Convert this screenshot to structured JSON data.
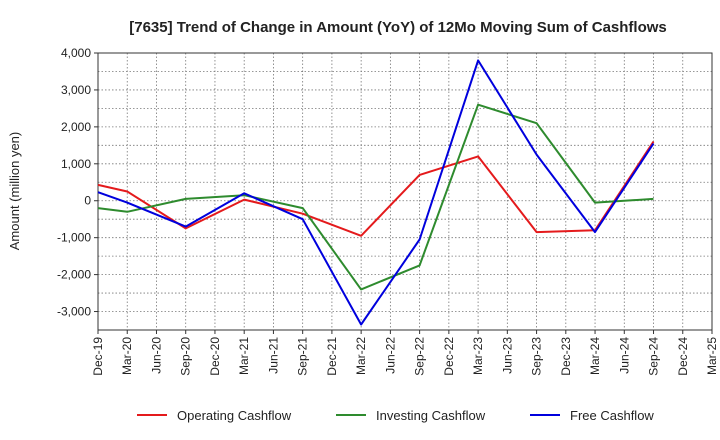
{
  "chart_data": {
    "type": "line",
    "title": "[7635]  Trend of Change in Amount (YoY) of 12Mo Moving Sum of Cashflows",
    "xlabel": "",
    "ylabel": "Amount (million yen)",
    "ylim": [
      -3500,
      4000
    ],
    "yticks": [
      -3000,
      -2000,
      -1000,
      0,
      1000,
      2000,
      3000,
      4000
    ],
    "ytick_labels": [
      "-3,000",
      "-2,000",
      "-1,000",
      "0",
      "1,000",
      "2,000",
      "3,000",
      "4,000"
    ],
    "categories": [
      "Dec-19",
      "Mar-20",
      "Jun-20",
      "Sep-20",
      "Dec-20",
      "Mar-21",
      "Jun-21",
      "Sep-21",
      "Dec-21",
      "Mar-22",
      "Jun-22",
      "Sep-22",
      "Dec-22",
      "Mar-23",
      "Jun-23",
      "Sep-23",
      "Dec-23",
      "Mar-24",
      "Jun-24",
      "Sep-24",
      "Dec-24",
      "Mar-25"
    ],
    "grid": true,
    "legend_position": "bottom",
    "series": [
      {
        "name": "Operating Cashflow",
        "color": "#e41a1c",
        "values": [
          430,
          250,
          null,
          -750,
          null,
          30,
          null,
          -350,
          null,
          -950,
          null,
          700,
          null,
          1200,
          null,
          -850,
          null,
          -800,
          null,
          1600,
          null,
          null
        ]
      },
      {
        "name": "Investing Cashflow",
        "color": "#2e8b2e",
        "values": [
          -200,
          -300,
          null,
          50,
          null,
          150,
          null,
          -200,
          null,
          -2400,
          null,
          -1750,
          null,
          2600,
          null,
          2100,
          null,
          -50,
          null,
          50,
          null,
          null
        ]
      },
      {
        "name": "Free Cashflow",
        "color": "#0000dd",
        "values": [
          230,
          -50,
          null,
          -700,
          null,
          200,
          null,
          -500,
          null,
          -3350,
          null,
          -1050,
          null,
          3800,
          null,
          1250,
          null,
          -850,
          null,
          1550,
          null,
          null
        ]
      }
    ]
  }
}
